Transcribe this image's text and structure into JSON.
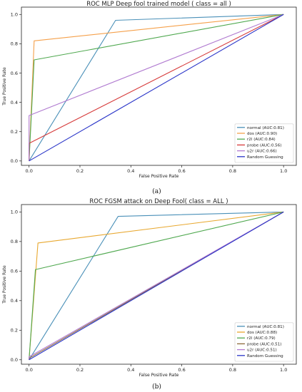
{
  "chart_data": [
    {
      "type": "line",
      "title": "ROC MLP Deep fool trained model ( class = all )",
      "xlabel": "False Positive Rate",
      "ylabel": "True Positive Rate",
      "xlim": [
        -0.03,
        1.05
      ],
      "ylim": [
        -0.03,
        1.05
      ],
      "xticks": [
        "0.0",
        "0.2",
        "0.4",
        "0.6",
        "0.8",
        "1.0"
      ],
      "yticks": [
        "0.0",
        "0.2",
        "0.4",
        "0.6",
        "0.8",
        "1.0"
      ],
      "legend_position": "lower-right",
      "caption": "(a)",
      "series": [
        {
          "name": "normal (AUC:0.81)",
          "color": "#4a90b8",
          "points": [
            [
              0,
              0
            ],
            [
              0.34,
              0.96
            ],
            [
              1,
              1
            ]
          ]
        },
        {
          "name": "dos (AUC:0.90)",
          "color": "#f5a04a",
          "points": [
            [
              0,
              0
            ],
            [
              0.02,
              0.82
            ],
            [
              1,
              1
            ]
          ]
        },
        {
          "name": "r2l (AUC:0.84)",
          "color": "#4fa84f",
          "points": [
            [
              0,
              0
            ],
            [
              0.02,
              0.69
            ],
            [
              1,
              1
            ]
          ]
        },
        {
          "name": "probe (AUC:0.56)",
          "color": "#d63a3a",
          "points": [
            [
              0,
              0
            ],
            [
              0.0,
              0.12
            ],
            [
              1,
              1
            ]
          ]
        },
        {
          "name": "u2r (AUC:0.66)",
          "color": "#b07ad0",
          "points": [
            [
              0,
              0
            ],
            [
              0.0,
              0.31
            ],
            [
              1,
              1
            ]
          ]
        },
        {
          "name": "Random Guessing",
          "color": "#2a35c8",
          "points": [
            [
              0,
              0
            ],
            [
              1,
              1
            ]
          ]
        }
      ]
    },
    {
      "type": "line",
      "title": "ROC FGSM attack on Deep Fool( class = ALL )",
      "xlabel": "False Positive Rate",
      "ylabel": "True Positive Rate",
      "xlim": [
        -0.03,
        1.05
      ],
      "ylim": [
        -0.03,
        1.05
      ],
      "xticks": [
        "0.0",
        "0.2",
        "0.4",
        "0.6",
        "0.8",
        "1.0"
      ],
      "yticks": [
        "0.0",
        "0.2",
        "0.4",
        "0.6",
        "0.8",
        "1.0"
      ],
      "legend_position": "lower-right",
      "caption": "(b)",
      "series": [
        {
          "name": "normal (AUC:0.81)",
          "color": "#4a90b8",
          "points": [
            [
              0,
              0
            ],
            [
              0.35,
              0.97
            ],
            [
              1,
              1
            ]
          ]
        },
        {
          "name": "dos (AUC:0.88)",
          "color": "#e8a830",
          "points": [
            [
              0,
              0
            ],
            [
              0.035,
              0.79
            ],
            [
              1,
              1
            ]
          ]
        },
        {
          "name": "r2l (AUC:0.79)",
          "color": "#4fa84f",
          "points": [
            [
              0,
              0
            ],
            [
              0.025,
              0.61
            ],
            [
              1,
              1
            ]
          ]
        },
        {
          "name": "probe (AUC:0.51)",
          "color": "#8c6a3a",
          "points": [
            [
              0,
              0
            ],
            [
              0.0,
              0.01
            ],
            [
              1,
              1
            ]
          ]
        },
        {
          "name": "u2r (AUC:0.51)",
          "color": "#b07ad0",
          "points": [
            [
              0,
              0
            ],
            [
              0.0,
              0.02
            ],
            [
              1,
              1
            ]
          ]
        },
        {
          "name": "Random Guessing",
          "color": "#2a35c8",
          "points": [
            [
              0,
              0
            ],
            [
              1,
              1
            ]
          ]
        }
      ]
    }
  ]
}
